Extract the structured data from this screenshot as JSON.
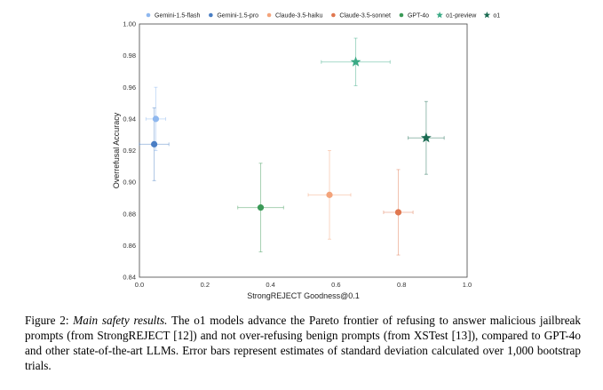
{
  "chart_data": {
    "type": "scatter",
    "xlabel": "StrongREJECT Goodness@0.1",
    "ylabel": "Overrefusal Accuracy",
    "xlim": [
      0.0,
      1.0
    ],
    "ylim": [
      0.84,
      1.0
    ],
    "xticks": [
      "0.0",
      "0.2",
      "0.4",
      "0.6",
      "0.8",
      "1.0"
    ],
    "yticks": [
      "0.84",
      "0.86",
      "0.88",
      "0.90",
      "0.92",
      "0.94",
      "0.96",
      "0.98",
      "1.00"
    ],
    "grid": false,
    "legend_position": "top",
    "series": [
      {
        "name": "Gemini-1.5-flash",
        "color": "#8fb8ef",
        "marker": "circle",
        "x": 0.05,
        "y": 0.94,
        "xerr": 0.03,
        "yerr": 0.02
      },
      {
        "name": "Gemini-1.5-pro",
        "color": "#4a7ec4",
        "marker": "circle",
        "x": 0.045,
        "y": 0.924,
        "xerr": 0.045,
        "yerr": 0.023
      },
      {
        "name": "Claude-3.5-haiku",
        "color": "#f3a37a",
        "marker": "circle",
        "x": 0.58,
        "y": 0.892,
        "xerr": 0.065,
        "yerr": 0.028
      },
      {
        "name": "Claude-3.5-sonnet",
        "color": "#e0774f",
        "marker": "circle",
        "x": 0.79,
        "y": 0.881,
        "xerr": 0.045,
        "yerr": 0.027
      },
      {
        "name": "GPT-4o",
        "color": "#3b9a57",
        "marker": "circle",
        "x": 0.37,
        "y": 0.884,
        "xerr": 0.07,
        "yerr": 0.028
      },
      {
        "name": "o1-preview",
        "color": "#3aaa85",
        "marker": "star",
        "x": 0.66,
        "y": 0.976,
        "xerr": 0.105,
        "yerr": 0.015
      },
      {
        "name": "o1",
        "color": "#1a6b52",
        "marker": "star",
        "x": 0.875,
        "y": 0.928,
        "xerr": 0.055,
        "yerr": 0.023
      }
    ]
  },
  "caption": {
    "label": "Figure 2:",
    "title": "Main safety results.",
    "text": "The o1 models advance the Pareto frontier of refusing to answer malicious jailbreak prompts (from StrongREJECT [12]) and not over-refusing benign prompts (from XSTest [13]), compared to GPT-4o and other state-of-the-art LLMs. Error bars represent estimates of standard deviation calculated over 1,000 bootstrap trials."
  }
}
